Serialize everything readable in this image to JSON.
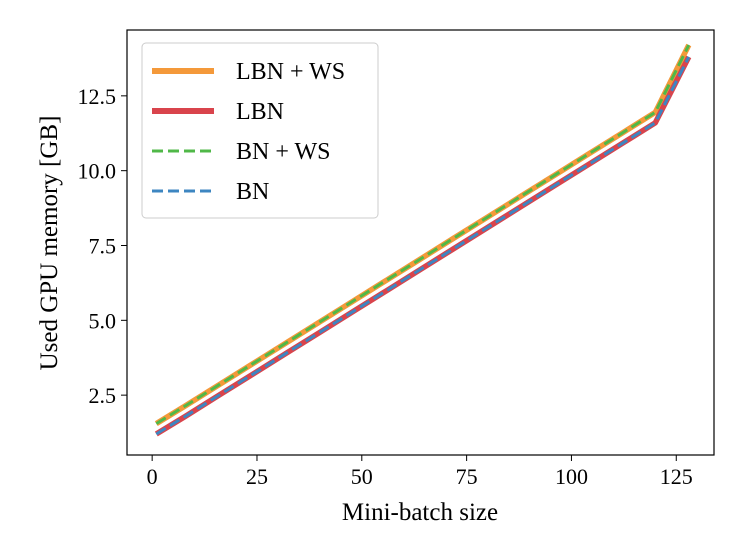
{
  "chart_data": {
    "type": "line",
    "title": "",
    "xlabel": "Mini-batch size",
    "ylabel": "Used GPU memory [GB]",
    "xlim": [
      -6,
      134
    ],
    "ylim": [
      0.5,
      14.7
    ],
    "xticks": [
      0,
      25,
      50,
      75,
      100,
      125
    ],
    "yticks": [
      2.5,
      5.0,
      7.5,
      10.0,
      12.5
    ],
    "xtick_labels": [
      "0",
      "25",
      "50",
      "75",
      "100",
      "125"
    ],
    "ytick_labels": [
      "2.5",
      "5.0",
      "7.5",
      "10.0",
      "12.5"
    ],
    "grid": false,
    "legend_position": "top-left",
    "series": [
      {
        "name": "LBN + WS",
        "color": "#f4993a",
        "style": "solid",
        "x": [
          1,
          8,
          16,
          24,
          32,
          40,
          48,
          56,
          64,
          72,
          80,
          88,
          96,
          104,
          112,
          120,
          128
        ],
        "y": [
          1.55,
          2.15,
          2.85,
          3.55,
          4.25,
          4.95,
          5.65,
          6.35,
          7.05,
          7.75,
          8.45,
          9.15,
          9.85,
          10.55,
          11.25,
          11.95,
          14.2
        ]
      },
      {
        "name": "LBN",
        "color": "#d9444c",
        "style": "solid",
        "x": [
          1,
          8,
          16,
          24,
          32,
          40,
          48,
          56,
          64,
          72,
          80,
          88,
          96,
          104,
          112,
          120,
          128
        ],
        "y": [
          1.2,
          1.8,
          2.5,
          3.2,
          3.9,
          4.6,
          5.3,
          6.0,
          6.7,
          7.4,
          8.1,
          8.8,
          9.5,
          10.2,
          10.9,
          11.6,
          13.8
        ]
      },
      {
        "name": "BN + WS",
        "color": "#50b848",
        "style": "dashed",
        "x": [
          1,
          8,
          16,
          24,
          32,
          40,
          48,
          56,
          64,
          72,
          80,
          88,
          96,
          104,
          112,
          120,
          128
        ],
        "y": [
          1.55,
          2.15,
          2.85,
          3.55,
          4.25,
          4.95,
          5.65,
          6.35,
          7.05,
          7.75,
          8.45,
          9.15,
          9.85,
          10.55,
          11.25,
          11.95,
          14.2
        ]
      },
      {
        "name": "BN",
        "color": "#3d86c1",
        "style": "dashed",
        "x": [
          1,
          8,
          16,
          24,
          32,
          40,
          48,
          56,
          64,
          72,
          80,
          88,
          96,
          104,
          112,
          120,
          128
        ],
        "y": [
          1.2,
          1.8,
          2.5,
          3.2,
          3.9,
          4.6,
          5.3,
          6.0,
          6.7,
          7.4,
          8.1,
          8.8,
          9.5,
          10.2,
          10.9,
          11.6,
          13.8
        ]
      }
    ]
  }
}
